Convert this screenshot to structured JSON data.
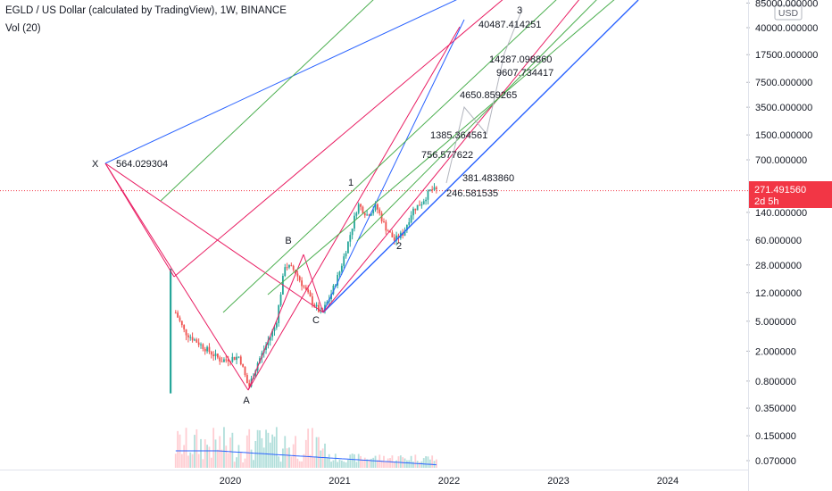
{
  "header": {
    "title": "EGLD / US Dollar (calculated by TradingView), 1W, BINANCE",
    "indicator": "Vol (20)"
  },
  "price_axis": {
    "currency_badge": "USD",
    "ticks": [
      "85000.000000",
      "40000.000000",
      "17500.000000",
      "7500.000000",
      "3500.000000",
      "1500.000000",
      "700.000000",
      "140.000000",
      "60.000000",
      "28.000000",
      "12.000000",
      "5.000000",
      "2.000000",
      "0.800000",
      "0.350000",
      "0.150000",
      "0.070000"
    ],
    "current_price": "271.491560",
    "countdown": "2d 5h"
  },
  "time_axis": {
    "ticks": [
      "2020",
      "2021",
      "2022",
      "2023",
      "2024"
    ]
  },
  "annotations": {
    "x_label": "X",
    "x_value": "564.029304",
    "a_label": "A",
    "b_label": "B",
    "c_label": "C",
    "wave1": "1",
    "wave2": "2",
    "wave3": "3",
    "targets": [
      "40487.414251",
      "14287.098860",
      "9607.734417",
      "4650.859265",
      "1385.364561",
      "756.577622",
      "381.483860",
      "246.581535"
    ]
  },
  "colors": {
    "up": "#26a69a",
    "down": "#ef5350",
    "pitchfork_red": "#e91e63",
    "pitchfork_blue": "#2962ff",
    "pitchfork_green": "#4caf50",
    "volume_ma": "#2962ff",
    "projection": "#b2b5be",
    "price_badge": "#f23645"
  },
  "chart_data": {
    "type": "candlestick",
    "title": "EGLD / US Dollar (calculated by TradingView), 1W, BINANCE",
    "scale": "log",
    "ylim": [
      0.06,
      90000
    ],
    "xlim": [
      "2019-06",
      "2024-08"
    ],
    "price_series": {
      "x": [
        "2019-07",
        "2019-09",
        "2019-11",
        "2020-01",
        "2020-03",
        "2020-05",
        "2020-07",
        "2020-09",
        "2020-11",
        "2021-01",
        "2021-03",
        "2021-05",
        "2021-07",
        "2021-09",
        "2021-11"
      ],
      "close": [
        6.5,
        2.6,
        1.6,
        1.7,
        0.9,
        2.2,
        11,
        28,
        6,
        23,
        180,
        120,
        50,
        140,
        271.49
      ]
    },
    "pattern_points": [
      {
        "label": "X",
        "date": "2019-06",
        "value": 564.029304
      },
      {
        "label": "A",
        "date": "2020-03",
        "value": 0.62
      },
      {
        "label": "B",
        "date": "2020-07",
        "value": 41
      },
      {
        "label": "C",
        "date": "2020-11",
        "value": 5.7
      },
      {
        "label": "1",
        "date": "2021-04",
        "value": 170
      },
      {
        "label": "2",
        "date": "2021-07",
        "value": 63
      },
      {
        "label": "3",
        "date": "2022-03",
        "value": 85000
      }
    ],
    "fib_targets": [
      40487.414251,
      14287.09886,
      9607.734417,
      4650.859265,
      1385.364561,
      756.577622,
      381.48386,
      246.581535
    ],
    "current_price": 271.49156
  }
}
